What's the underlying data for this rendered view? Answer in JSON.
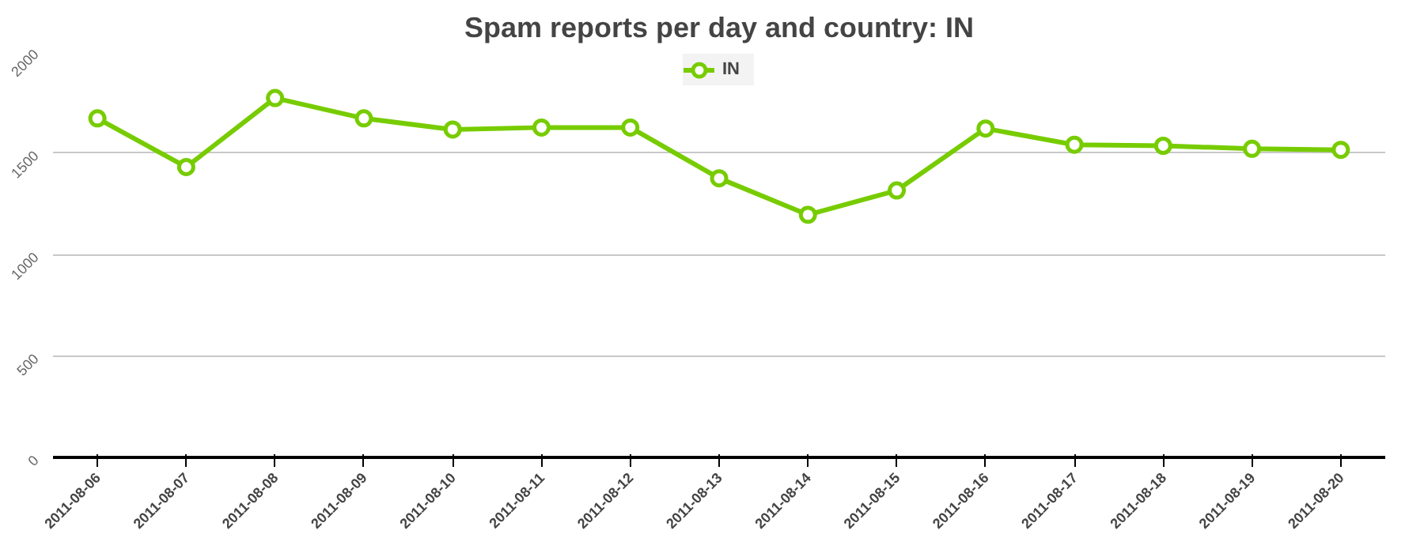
{
  "chart_data": {
    "type": "line",
    "title": "Spam reports per day and country: IN",
    "categories": [
      "2011-08-06",
      "2011-08-07",
      "2011-08-08",
      "2011-08-09",
      "2011-08-10",
      "2011-08-11",
      "2011-08-12",
      "2011-08-13",
      "2011-08-14",
      "2011-08-15",
      "2011-08-16",
      "2011-08-17",
      "2011-08-18",
      "2011-08-19",
      "2011-08-20"
    ],
    "series": [
      {
        "name": "IN",
        "color": "#77cc00",
        "values": [
          1670,
          1430,
          1770,
          1670,
          1615,
          1625,
          1625,
          1375,
          1195,
          1315,
          1620,
          1540,
          1535,
          1520,
          1515
        ]
      }
    ],
    "ylim": [
      0,
      2000
    ],
    "yticks": [
      0,
      500,
      1000,
      1500,
      2000
    ],
    "grid": "y",
    "legend": "top",
    "marker": "circle",
    "line_style": "solid"
  }
}
